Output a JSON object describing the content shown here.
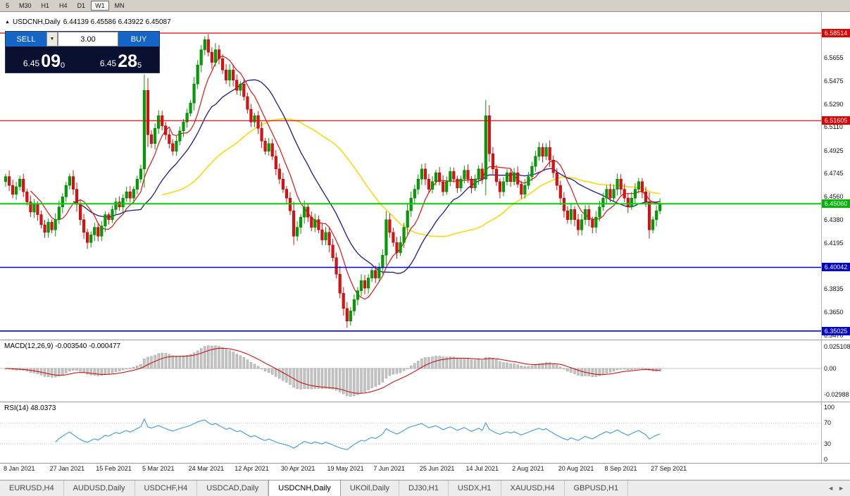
{
  "toolbar": {
    "timeframes": [
      "5",
      "M30",
      "H1",
      "H4",
      "D1",
      "W1",
      "MN"
    ],
    "active": "W1"
  },
  "chart": {
    "collapse_icon": "▲",
    "title": "USDCNH,Daily",
    "ohlc": "6.44139 6.45586 6.43922 6.45087"
  },
  "trade_panel": {
    "sell_label": "SELL",
    "buy_label": "BUY",
    "volume": "3.00",
    "volume_dropdown_icon": "▼",
    "sell_price_prefix": "6.45",
    "sell_price_big": "09",
    "sell_price_sup": "0",
    "buy_price_prefix": "6.45",
    "buy_price_big": "28",
    "buy_price_sup": "5"
  },
  "levels": [
    {
      "value": 6.58514,
      "label": "6.58514",
      "style": "red"
    },
    {
      "value": 6.51605,
      "label": "6.51605",
      "style": "red"
    },
    {
      "value": 6.4506,
      "label": "6.45060",
      "style": "green"
    },
    {
      "value": 6.40042,
      "label": "6.40042",
      "style": "blue"
    },
    {
      "value": 6.35025,
      "label": "6.35025",
      "style": "blue"
    }
  ],
  "price_axis_ticks": [
    "6.5655",
    "6.5475",
    "6.5290",
    "6.5110",
    "6.4925",
    "6.4745",
    "6.4560",
    "6.4380",
    "6.4195",
    "6.3835",
    "6.3650",
    "6.3470"
  ],
  "macd": {
    "label": "MACD(12,26,9) -0.003540 -0.000477",
    "axis": [
      "0.025108",
      "0.00",
      "-0.02988"
    ]
  },
  "rsi": {
    "label": "RSI(14) 48.0373",
    "axis": [
      "100",
      "70",
      "30",
      "0"
    ]
  },
  "date_axis": [
    "8 Jan 2021",
    "27 Jan 2021",
    "15 Feb 2021",
    "5 Mar 2021",
    "24 Mar 2021",
    "12 Apr 2021",
    "30 Apr 2021",
    "19 May 2021",
    "7 Jun 2021",
    "25 Jun 2021",
    "14 Jul 2021",
    "2 Aug 2021",
    "20 Aug 2021",
    "8 Sep 2021",
    "27 Sep 2021"
  ],
  "tabs": {
    "items": [
      "EURUSD,H4",
      "AUDUSD,Daily",
      "USDCHF,H4",
      "USDCAD,Daily",
      "USDCNH,Daily",
      "UKOil,Daily",
      "DJ30,H1",
      "USDX,H1",
      "XAUUSD,H4",
      "GBPUSD,H1"
    ],
    "active": "USDCNH,Daily",
    "left_arrow": "◄",
    "right_arrow": "►"
  },
  "chart_data": {
    "type": "candlestick",
    "symbol": "USDCNH",
    "timeframe": "Daily",
    "current_open": 6.44139,
    "current_high": 6.45586,
    "current_low": 6.43922,
    "current_close": 6.45087,
    "price_range_visible": [
      6.347,
      6.5655
    ],
    "closes": [
      6.472,
      6.465,
      6.458,
      6.464,
      6.47,
      6.46,
      6.452,
      6.444,
      6.45,
      6.442,
      6.434,
      6.428,
      6.436,
      6.43,
      6.438,
      6.448,
      6.456,
      6.465,
      6.472,
      6.462,
      6.45,
      6.438,
      6.428,
      6.42,
      6.426,
      6.432,
      6.425,
      6.433,
      6.442,
      6.438,
      6.446,
      6.452,
      6.448,
      6.455,
      6.46,
      6.455,
      6.462,
      6.47,
      6.478,
      6.54,
      6.505,
      6.498,
      6.51,
      6.52,
      6.512,
      6.505,
      6.498,
      6.492,
      6.5,
      6.508,
      6.515,
      6.522,
      6.53,
      6.545,
      6.56,
      6.572,
      6.58,
      6.57,
      6.562,
      6.572,
      6.565,
      6.556,
      6.548,
      6.556,
      6.548,
      6.54,
      6.545,
      6.535,
      6.525,
      6.515,
      6.52,
      6.51,
      6.5,
      6.492,
      6.498,
      6.488,
      6.478,
      6.47,
      6.462,
      6.455,
      6.445,
      6.425,
      6.432,
      6.44,
      6.448,
      6.44,
      6.432,
      6.438,
      6.43,
      6.422,
      6.428,
      6.418,
      6.408,
      6.395,
      6.38,
      6.368,
      6.358,
      6.366,
      6.375,
      6.382,
      6.39,
      6.384,
      6.392,
      6.398,
      6.392,
      6.4,
      6.41,
      6.438,
      6.428,
      6.42,
      6.412,
      6.42,
      6.432,
      6.445,
      6.455,
      6.462,
      6.47,
      6.478,
      6.47,
      6.462,
      6.468,
      6.475,
      6.468,
      6.46,
      6.468,
      6.476,
      6.47,
      6.463,
      6.47,
      6.477,
      6.47,
      6.463,
      6.47,
      6.478,
      6.47,
      6.52,
      6.49,
      6.478,
      6.468,
      6.46,
      6.468,
      6.475,
      6.468,
      6.475,
      6.466,
      6.458,
      6.465,
      6.472,
      6.48,
      6.488,
      6.495,
      6.488,
      6.495,
      6.485,
      6.475,
      6.465,
      6.455,
      6.445,
      6.438,
      6.446,
      6.438,
      6.43,
      6.438,
      6.446,
      6.438,
      6.432,
      6.44,
      6.448,
      6.455,
      6.462,
      6.455,
      6.462,
      6.47,
      6.462,
      6.455,
      6.448,
      6.455,
      6.462,
      6.468,
      6.46,
      6.452,
      6.43,
      6.438,
      6.445,
      6.45087
    ],
    "indicators": {
      "macd_params": "12,26,9",
      "macd_values_shown": [
        -0.00354,
        -0.000477
      ],
      "rsi_params": "14",
      "rsi_value_shown": 48.0373
    }
  }
}
